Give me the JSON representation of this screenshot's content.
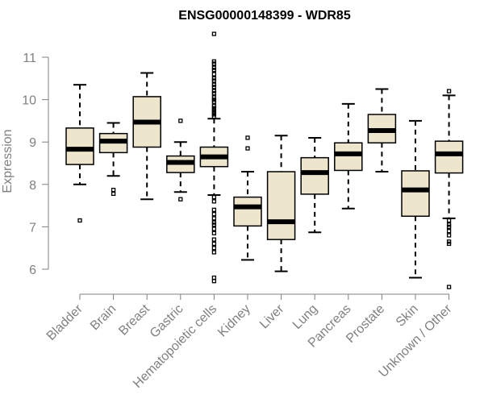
{
  "chart_data": {
    "type": "box",
    "title": "ENSG00000148399 - WDR85",
    "xlabel": "",
    "ylabel": "Expression",
    "ylim": [
      5.5,
      11.6
    ],
    "yticks": [
      "6",
      "7",
      "8",
      "9",
      "10",
      "11"
    ],
    "box_color": "#ede6cc",
    "categories": [
      "Bladder",
      "Brain",
      "Breast",
      "Gastric",
      "Hematopoietic cells",
      "Kidney",
      "Liver",
      "Lung",
      "Pancreas",
      "Prostate",
      "Skin",
      "Unknown / Other"
    ],
    "series": [
      {
        "name": "Bladder",
        "whisker_low": 8.0,
        "q1": 8.47,
        "median": 8.83,
        "q3": 9.33,
        "whisker_high": 10.35,
        "outliers": [
          7.15
        ]
      },
      {
        "name": "Brain",
        "whisker_low": 8.2,
        "q1": 8.75,
        "median": 9.02,
        "q3": 9.2,
        "whisker_high": 9.45,
        "outliers": [
          7.87,
          7.78
        ]
      },
      {
        "name": "Breast",
        "whisker_low": 7.65,
        "q1": 8.88,
        "median": 9.47,
        "q3": 10.07,
        "whisker_high": 10.63,
        "outliers": []
      },
      {
        "name": "Gastric",
        "whisker_low": 7.82,
        "q1": 8.28,
        "median": 8.52,
        "q3": 8.67,
        "whisker_high": 9.0,
        "outliers": [
          9.5,
          7.65
        ]
      },
      {
        "name": "Hematopoietic cells",
        "whisker_low": 7.75,
        "q1": 8.42,
        "median": 8.65,
        "q3": 8.88,
        "whisker_high": 9.55,
        "outliers": [
          11.55,
          10.9,
          10.85,
          10.75,
          10.7,
          10.6,
          10.5,
          10.45,
          10.35,
          10.3,
          10.2,
          10.15,
          10.05,
          10.0,
          9.95,
          9.85,
          9.8,
          9.75,
          9.7,
          9.65,
          9.6,
          7.7,
          7.6,
          7.4,
          7.3,
          7.2,
          7.1,
          7.05,
          6.95,
          6.85,
          6.7,
          6.6,
          6.5,
          6.4,
          5.8,
          5.72
        ]
      },
      {
        "name": "Kidney",
        "whisker_low": 6.22,
        "q1": 7.02,
        "median": 7.47,
        "q3": 7.7,
        "whisker_high": 8.3,
        "outliers": [
          9.1,
          8.85
        ]
      },
      {
        "name": "Liver",
        "whisker_low": 5.95,
        "q1": 6.7,
        "median": 7.12,
        "q3": 8.3,
        "whisker_high": 9.15,
        "outliers": []
      },
      {
        "name": "Lung",
        "whisker_low": 6.87,
        "q1": 7.77,
        "median": 8.28,
        "q3": 8.63,
        "whisker_high": 9.1,
        "outliers": []
      },
      {
        "name": "Pancreas",
        "whisker_low": 7.43,
        "q1": 8.33,
        "median": 8.72,
        "q3": 8.98,
        "whisker_high": 9.9,
        "outliers": []
      },
      {
        "name": "Prostate",
        "whisker_low": 8.3,
        "q1": 8.98,
        "median": 9.27,
        "q3": 9.65,
        "whisker_high": 10.25,
        "outliers": []
      },
      {
        "name": "Skin",
        "whisker_low": 5.8,
        "q1": 7.25,
        "median": 7.87,
        "q3": 8.32,
        "whisker_high": 9.5,
        "outliers": []
      },
      {
        "name": "Unknown / Other",
        "whisker_low": 7.2,
        "q1": 8.27,
        "median": 8.72,
        "q3": 9.02,
        "whisker_high": 10.1,
        "outliers": [
          10.2,
          7.15,
          7.05,
          7.0,
          6.9,
          6.8,
          6.65,
          6.6,
          5.58
        ]
      }
    ]
  }
}
